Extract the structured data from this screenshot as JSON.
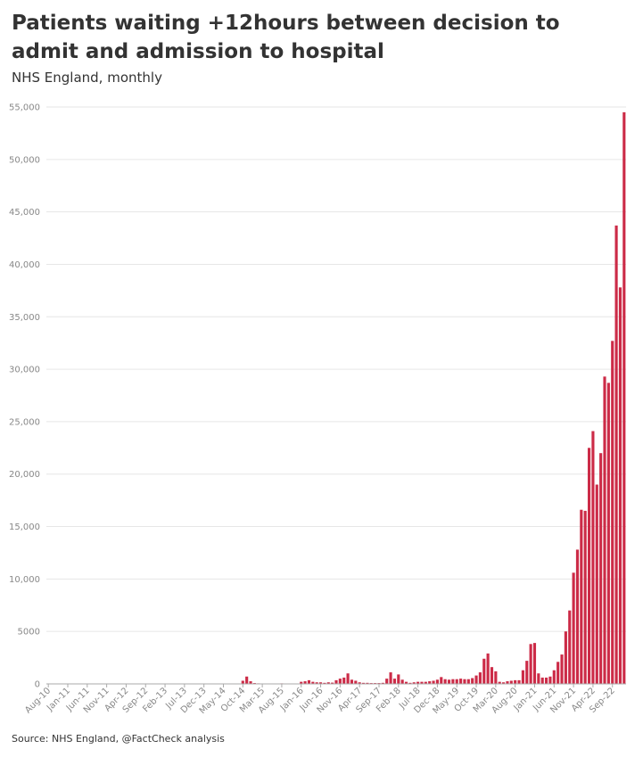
{
  "title": "Patients waiting +12hours between decision to admit and admission to hospital",
  "subtitle": "NHS England, monthly",
  "source": "Source: NHS England, @FactCheck analysis",
  "colors": {
    "bar": "#cc2b47",
    "grid": "#e6e6e6",
    "axis": "#aaaaaa",
    "text": "#333333"
  },
  "chart_data": {
    "type": "bar",
    "title": "Patients waiting +12hours between decision to admit and admission to hospital",
    "subtitle": "NHS England, monthly",
    "start_month": "Aug-10",
    "ylim": [
      0,
      55000
    ],
    "yticks": [
      0,
      5000,
      10000,
      15000,
      20000,
      25000,
      30000,
      35000,
      40000,
      45000,
      50000,
      55000
    ],
    "ytick_labels": [
      "0",
      "5000",
      "10,000",
      "15,000",
      "20,000",
      "25,000",
      "30,000",
      "35,000",
      "40,000",
      "45,000",
      "50,000",
      "55,000"
    ],
    "xtick_labels": [
      {
        "label": "Aug-10",
        "index": 0
      },
      {
        "label": "Jan-11",
        "index": 5
      },
      {
        "label": "Jun-11",
        "index": 10
      },
      {
        "label": "Nov-11",
        "index": 15
      },
      {
        "label": "Apr-12",
        "index": 20
      },
      {
        "label": "Sep-12",
        "index": 25
      },
      {
        "label": "Feb-13",
        "index": 30
      },
      {
        "label": "Jul-13",
        "index": 35
      },
      {
        "label": "Dec-13",
        "index": 40
      },
      {
        "label": "May-14",
        "index": 45
      },
      {
        "label": "Oct-14",
        "index": 50
      },
      {
        "label": "Mar-15",
        "index": 55
      },
      {
        "label": "Aug-15",
        "index": 60
      },
      {
        "label": "Jan-16",
        "index": 65
      },
      {
        "label": "Jun-16",
        "index": 70
      },
      {
        "label": "Nov-16",
        "index": 75
      },
      {
        "label": "Apr-17",
        "index": 80
      },
      {
        "label": "Sep-17",
        "index": 85
      },
      {
        "label": "Feb-18",
        "index": 90
      },
      {
        "label": "Jul-18",
        "index": 95
      },
      {
        "label": "Dec-18",
        "index": 100
      },
      {
        "label": "May-19",
        "index": 105
      },
      {
        "label": "Oct-19",
        "index": 110
      },
      {
        "label": "Mar-20",
        "index": 115
      },
      {
        "label": "Aug-20",
        "index": 120
      },
      {
        "label": "Jan-21",
        "index": 125
      },
      {
        "label": "Jun-21",
        "index": 130
      },
      {
        "label": "Nov-21",
        "index": 135
      },
      {
        "label": "Apr-22",
        "index": 140
      },
      {
        "label": "Sep-22",
        "index": 145
      }
    ],
    "values": [
      0,
      0,
      0,
      0,
      0,
      0,
      0,
      0,
      0,
      0,
      0,
      0,
      0,
      0,
      0,
      15,
      0,
      0,
      0,
      0,
      0,
      0,
      0,
      0,
      0,
      0,
      0,
      0,
      0,
      5,
      20,
      10,
      5,
      0,
      0,
      0,
      0,
      0,
      0,
      0,
      5,
      15,
      5,
      0,
      0,
      0,
      0,
      0,
      0,
      30,
      300,
      700,
      250,
      80,
      50,
      40,
      30,
      20,
      25,
      30,
      50,
      40,
      30,
      20,
      20,
      200,
      250,
      350,
      200,
      150,
      150,
      100,
      150,
      120,
      350,
      500,
      600,
      1000,
      400,
      300,
      150,
      100,
      100,
      80,
      80,
      80,
      100,
      500,
      1100,
      500,
      900,
      400,
      200,
      100,
      150,
      200,
      200,
      200,
      250,
      300,
      400,
      650,
      450,
      400,
      450,
      450,
      500,
      450,
      450,
      550,
      800,
      1100,
      2400,
      2900,
      1600,
      1200,
      200,
      150,
      250,
      300,
      350,
      350,
      1300,
      2200,
      3800,
      3900,
      1000,
      600,
      600,
      700,
      1300,
      2100,
      2800,
      5000,
      7000,
      10600,
      12800,
      16600,
      16500,
      22500,
      24100,
      19000,
      22000,
      29300,
      28700,
      32700,
      43700,
      37800,
      54500
    ]
  }
}
